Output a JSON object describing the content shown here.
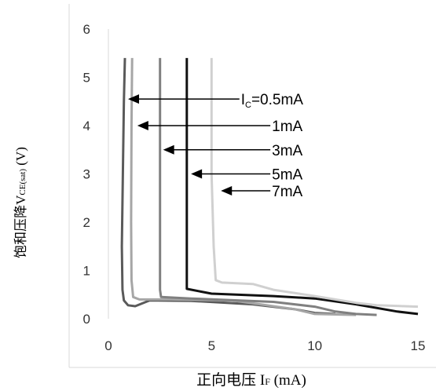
{
  "chart_data": {
    "type": "line",
    "title": "",
    "xlabel": "正向电压  IF (mA)",
    "xlabel_parts": {
      "main": "正向电压  I",
      "sub": "F",
      "tail": " (mA)"
    },
    "ylabel": "饱和压降VCE(sat) (V)",
    "ylabel_parts": {
      "main": "饱和压降V",
      "sub": "CE(sat)",
      "tail": " (V)"
    },
    "xlim": [
      0,
      15
    ],
    "ylim": [
      0,
      6
    ],
    "xticks": [
      "0",
      "5",
      "10",
      "15"
    ],
    "yticks": [
      "0",
      "1",
      "2",
      "3",
      "4",
      "5",
      "6"
    ],
    "grid": false,
    "series": [
      {
        "color": "#5a5a5a",
        "points": [
          [
            0.8,
            5.4
          ],
          [
            0.75,
            4.5
          ],
          [
            0.7,
            3.0
          ],
          [
            0.65,
            1.5
          ],
          [
            0.68,
            0.6
          ],
          [
            0.75,
            0.38
          ],
          [
            0.95,
            0.28
          ],
          [
            1.3,
            0.26
          ],
          [
            2.0,
            0.38
          ],
          [
            4.0,
            0.37
          ],
          [
            7.0,
            0.3
          ],
          [
            9.0,
            0.2
          ],
          [
            10.0,
            0.12
          ],
          [
            11.0,
            0.1
          ]
        ]
      },
      {
        "color": "#a6a6a6",
        "points": [
          [
            1.15,
            5.4
          ],
          [
            1.12,
            4.0
          ],
          [
            1.1,
            2.0
          ],
          [
            1.12,
            0.8
          ],
          [
            1.2,
            0.45
          ],
          [
            1.5,
            0.4
          ],
          [
            3.0,
            0.4
          ],
          [
            6.0,
            0.38
          ],
          [
            9.0,
            0.2
          ],
          [
            10.0,
            0.1
          ],
          [
            12.0,
            0.08
          ]
        ]
      },
      {
        "color": "#808080",
        "points": [
          [
            2.5,
            5.4
          ],
          [
            2.5,
            3.5
          ],
          [
            2.5,
            1.5
          ],
          [
            2.5,
            0.6
          ],
          [
            2.55,
            0.45
          ],
          [
            4.0,
            0.42
          ],
          [
            8.0,
            0.35
          ],
          [
            10.0,
            0.25
          ],
          [
            11.0,
            0.15
          ],
          [
            12.0,
            0.1
          ],
          [
            13.0,
            0.08
          ]
        ]
      },
      {
        "color": "#111111",
        "points": [
          [
            3.8,
            5.4
          ],
          [
            3.8,
            3.5
          ],
          [
            3.8,
            1.5
          ],
          [
            3.8,
            0.62
          ],
          [
            5.0,
            0.52
          ],
          [
            8.0,
            0.47
          ],
          [
            10.0,
            0.42
          ],
          [
            12.0,
            0.3
          ],
          [
            14.0,
            0.15
          ],
          [
            15.0,
            0.1
          ]
        ]
      },
      {
        "color": "#d0d0d0",
        "points": [
          [
            5.0,
            5.4
          ],
          [
            5.0,
            3.0
          ],
          [
            5.1,
            1.5
          ],
          [
            5.2,
            0.8
          ],
          [
            5.5,
            0.75
          ],
          [
            7.0,
            0.72
          ],
          [
            8.0,
            0.6
          ],
          [
            10.0,
            0.47
          ],
          [
            12.0,
            0.33
          ],
          [
            13.0,
            0.28
          ],
          [
            15.0,
            0.25
          ]
        ]
      }
    ],
    "annotations": [
      {
        "label_main": "I",
        "label_sub": "C",
        "label_tail": "=0.5mA",
        "arrow_to": [
          0.8,
          4.55
        ],
        "text_at": [
          6.5,
          4.55
        ]
      },
      {
        "label_main": "1mA",
        "label_sub": "",
        "label_tail": "",
        "arrow_to": [
          1.25,
          4.0
        ],
        "text_at": [
          8.0,
          4.0
        ]
      },
      {
        "label_main": "3mA",
        "label_sub": "",
        "label_tail": "",
        "arrow_to": [
          2.5,
          3.5
        ],
        "text_at": [
          8.0,
          3.5
        ]
      },
      {
        "label_main": "5mA",
        "label_sub": "",
        "label_tail": "",
        "arrow_to": [
          3.85,
          3.0
        ],
        "text_at": [
          8.0,
          3.0
        ]
      },
      {
        "label_main": "7mA",
        "label_sub": "",
        "label_tail": "",
        "arrow_to": [
          5.3,
          2.65
        ],
        "text_at": [
          8.0,
          2.65
        ]
      }
    ]
  }
}
